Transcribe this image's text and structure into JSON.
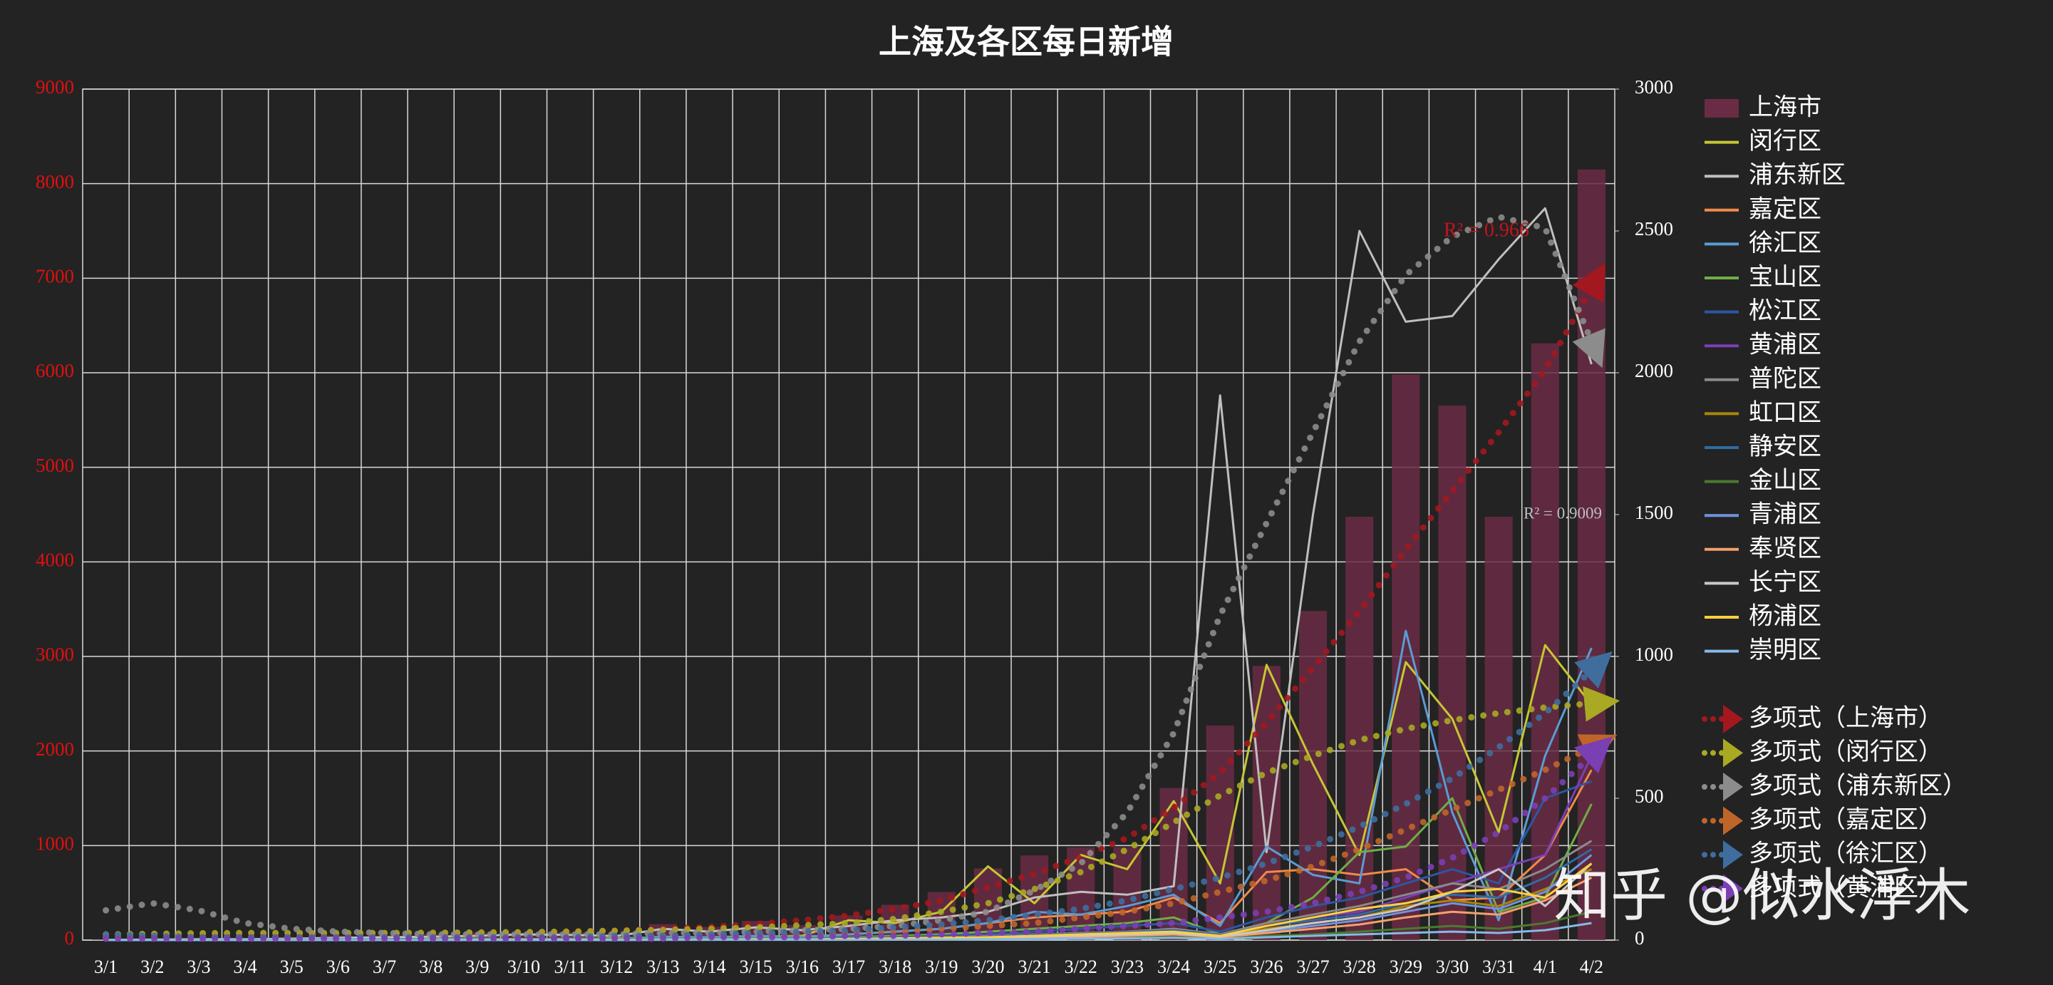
{
  "chart_data": {
    "type": "bar",
    "title": "上海及各区每日新增",
    "categories": [
      "3/1",
      "3/2",
      "3/3",
      "3/4",
      "3/5",
      "3/6",
      "3/7",
      "3/8",
      "3/9",
      "3/10",
      "3/11",
      "3/12",
      "3/13",
      "3/14",
      "3/15",
      "3/16",
      "3/17",
      "3/18",
      "3/19",
      "3/20",
      "3/21",
      "3/22",
      "3/23",
      "3/24",
      "3/25",
      "3/26",
      "3/27",
      "3/28",
      "3/29",
      "3/30",
      "3/31",
      "4/1",
      "4/2"
    ],
    "ylim": [
      0,
      9000
    ],
    "yticks": [
      0,
      1000,
      2000,
      3000,
      4000,
      5000,
      6000,
      7000,
      8000,
      9000
    ],
    "y2lim": [
      0,
      3000
    ],
    "y2ticks": [
      0,
      500,
      1000,
      1500,
      2000,
      2500,
      3000
    ],
    "grid": true,
    "series": [
      {
        "name": "上海市",
        "type": "bar",
        "color": "#6a2c44",
        "values": [
          3,
          5,
          16,
          19,
          31,
          48,
          48,
          65,
          80,
          75,
          83,
          65,
          169,
          139,
          202,
          158,
          260,
          374,
          509,
          758,
          896,
          981,
          983,
          1609,
          2269,
          2900,
          3480,
          4477,
          5982,
          5653,
          4477,
          6311,
          8150
        ]
      },
      {
        "name": "闵行区",
        "type": "line",
        "axis": "y2",
        "color": "#c6c634",
        "values": [
          0,
          0,
          0,
          1,
          2,
          3,
          2,
          4,
          5,
          3,
          4,
          6,
          10,
          8,
          12,
          15,
          70,
          60,
          100,
          260,
          130,
          300,
          250,
          490,
          200,
          970,
          620,
          300,
          980,
          780,
          380,
          1040,
          830
        ]
      },
      {
        "name": "浦东新区",
        "type": "line",
        "axis": "y2",
        "color": "#bfbfbf",
        "values": [
          1,
          2,
          3,
          3,
          5,
          8,
          10,
          12,
          15,
          20,
          18,
          14,
          40,
          30,
          45,
          35,
          50,
          70,
          80,
          100,
          150,
          170,
          160,
          190,
          1920,
          310,
          1500,
          2500,
          2180,
          2200,
          2400,
          2580,
          2030
        ]
      },
      {
        "name": "嘉定区",
        "type": "line",
        "axis": "y2",
        "color": "#f08a4b",
        "values": [
          0,
          0,
          0,
          0,
          1,
          2,
          1,
          2,
          3,
          2,
          3,
          4,
          10,
          8,
          12,
          10,
          20,
          30,
          40,
          60,
          80,
          90,
          100,
          150,
          60,
          240,
          250,
          230,
          250,
          140,
          150,
          300,
          600
        ]
      },
      {
        "name": "徐汇区",
        "type": "line",
        "axis": "y2",
        "color": "#5b9bd5",
        "values": [
          0,
          0,
          0,
          1,
          2,
          3,
          2,
          3,
          4,
          3,
          5,
          4,
          12,
          10,
          15,
          12,
          20,
          30,
          40,
          60,
          100,
          90,
          120,
          160,
          50,
          330,
          230,
          200,
          1090,
          450,
          70,
          650,
          1030
        ]
      },
      {
        "name": "宝山区",
        "type": "line",
        "axis": "y2",
        "color": "#70ad47",
        "values": [
          0,
          0,
          0,
          0,
          1,
          1,
          1,
          2,
          2,
          2,
          3,
          3,
          6,
          5,
          8,
          6,
          10,
          15,
          20,
          30,
          40,
          50,
          60,
          80,
          20,
          60,
          150,
          310,
          330,
          500,
          100,
          150,
          480
        ]
      },
      {
        "name": "松江区",
        "type": "line",
        "axis": "y2",
        "color": "#2f55a4",
        "values": [
          0,
          0,
          0,
          0,
          0,
          1,
          1,
          1,
          2,
          2,
          2,
          2,
          5,
          4,
          6,
          5,
          8,
          10,
          15,
          20,
          30,
          40,
          50,
          60,
          30,
          80,
          120,
          150,
          200,
          250,
          200,
          500,
          560
        ]
      },
      {
        "name": "黄浦区",
        "type": "line",
        "axis": "y2",
        "color": "#7b3fb5",
        "values": [
          0,
          0,
          0,
          0,
          0,
          0,
          1,
          1,
          1,
          1,
          2,
          2,
          4,
          3,
          5,
          4,
          6,
          8,
          10,
          15,
          20,
          25,
          30,
          40,
          20,
          50,
          80,
          100,
          150,
          200,
          250,
          300,
          650
        ]
      },
      {
        "name": "普陀区",
        "type": "line",
        "axis": "y2",
        "color": "#8a8a8a",
        "values": [
          0,
          0,
          0,
          0,
          0,
          1,
          1,
          1,
          1,
          2,
          2,
          2,
          4,
          3,
          5,
          4,
          6,
          8,
          10,
          14,
          20,
          25,
          30,
          40,
          20,
          60,
          90,
          120,
          160,
          200,
          180,
          250,
          350
        ]
      },
      {
        "name": "虹口区",
        "type": "line",
        "axis": "y2",
        "color": "#a8860a",
        "values": [
          0,
          0,
          0,
          0,
          0,
          0,
          0,
          1,
          1,
          1,
          1,
          1,
          3,
          2,
          4,
          3,
          5,
          6,
          8,
          10,
          15,
          20,
          25,
          30,
          15,
          40,
          60,
          80,
          120,
          140,
          120,
          180,
          250
        ]
      },
      {
        "name": "静安区",
        "type": "line",
        "axis": "y2",
        "color": "#2f6ca3",
        "values": [
          0,
          0,
          0,
          0,
          0,
          0,
          1,
          1,
          1,
          1,
          1,
          2,
          3,
          3,
          4,
          3,
          5,
          7,
          9,
          12,
          18,
          22,
          28,
          35,
          18,
          50,
          70,
          90,
          130,
          160,
          150,
          220,
          320
        ]
      },
      {
        "name": "金山区",
        "type": "line",
        "axis": "y2",
        "color": "#4a7a2e",
        "values": [
          0,
          0,
          0,
          0,
          0,
          0,
          0,
          0,
          0,
          0,
          1,
          1,
          1,
          1,
          2,
          1,
          2,
          3,
          4,
          5,
          6,
          8,
          10,
          12,
          6,
          15,
          20,
          30,
          40,
          50,
          40,
          60,
          100
        ]
      },
      {
        "name": "青浦区",
        "type": "line",
        "axis": "y2",
        "color": "#6f94dc",
        "values": [
          0,
          0,
          0,
          0,
          0,
          0,
          0,
          1,
          1,
          1,
          1,
          1,
          2,
          2,
          3,
          2,
          4,
          5,
          6,
          8,
          12,
          15,
          18,
          25,
          12,
          30,
          50,
          70,
          100,
          130,
          110,
          170,
          300
        ]
      },
      {
        "name": "奉贤区",
        "type": "line",
        "axis": "y2",
        "color": "#f4a06b",
        "values": [
          0,
          0,
          0,
          0,
          0,
          0,
          0,
          0,
          0,
          1,
          1,
          1,
          2,
          2,
          2,
          2,
          3,
          4,
          5,
          7,
          10,
          12,
          15,
          20,
          10,
          25,
          40,
          55,
          80,
          100,
          90,
          140,
          220
        ]
      },
      {
        "name": "长宁区",
        "type": "line",
        "axis": "y2",
        "color": "#c8c8c8",
        "values": [
          0,
          0,
          0,
          0,
          0,
          0,
          0,
          0,
          1,
          1,
          1,
          1,
          2,
          2,
          3,
          2,
          4,
          5,
          6,
          9,
          12,
          15,
          20,
          25,
          12,
          35,
          60,
          80,
          110,
          170,
          250,
          120,
          270
        ]
      },
      {
        "name": "杨浦区",
        "type": "line",
        "axis": "y2",
        "color": "#ffd040",
        "values": [
          0,
          0,
          0,
          0,
          0,
          0,
          0,
          0,
          1,
          1,
          1,
          1,
          2,
          2,
          3,
          2,
          4,
          6,
          8,
          10,
          15,
          20,
          25,
          30,
          15,
          50,
          80,
          110,
          130,
          170,
          180,
          150,
          270
        ]
      },
      {
        "name": "崇明区",
        "type": "line",
        "axis": "y2",
        "color": "#86b9e6",
        "values": [
          0,
          0,
          0,
          0,
          0,
          0,
          0,
          0,
          0,
          0,
          0,
          0,
          1,
          1,
          1,
          1,
          1,
          2,
          2,
          3,
          4,
          5,
          6,
          8,
          4,
          10,
          15,
          20,
          25,
          30,
          25,
          35,
          60
        ]
      },
      {
        "name": "多项式（上海市）",
        "type": "line",
        "style": "dotted",
        "color": "#a3171f",
        "values": [
          60,
          55,
          50,
          50,
          50,
          55,
          60,
          65,
          70,
          80,
          90,
          100,
          120,
          140,
          170,
          210,
          260,
          330,
          420,
          560,
          700,
          880,
          1080,
          1400,
          1770,
          2300,
          2880,
          3480,
          4130,
          4750,
          5370,
          6030,
          6900
        ]
      },
      {
        "name": "多项式（闵行区）",
        "type": "line",
        "style": "dotted",
        "axis": "y2",
        "color": "#a9a923",
        "values": [
          20,
          22,
          24,
          25,
          25,
          25,
          25,
          26,
          27,
          28,
          30,
          33,
          36,
          40,
          45,
          52,
          60,
          75,
          100,
          130,
          180,
          240,
          320,
          415,
          510,
          590,
          650,
          705,
          745,
          775,
          800,
          820,
          835
        ]
      },
      {
        "name": "多项式（浦东新区）",
        "type": "line",
        "style": "dotted",
        "axis": "y2",
        "color": "#8c8c8c",
        "values": [
          105,
          130,
          105,
          60,
          40,
          30,
          25,
          20,
          20,
          20,
          20,
          20,
          25,
          25,
          30,
          35,
          40,
          50,
          70,
          100,
          175,
          270,
          450,
          730,
          1145,
          1470,
          1790,
          2110,
          2345,
          2480,
          2550,
          2510,
          2110
        ]
      },
      {
        "name": "多项式（嘉定区）",
        "type": "line",
        "style": "dotted",
        "axis": "y2",
        "color": "#c0652a",
        "values": [
          10,
          10,
          10,
          10,
          10,
          10,
          10,
          10,
          10,
          10,
          10,
          10,
          15,
          15,
          20,
          20,
          25,
          30,
          40,
          50,
          60,
          80,
          100,
          130,
          170,
          210,
          260,
          320,
          390,
          460,
          530,
          600,
          680
        ]
      },
      {
        "name": "多项式（徐汇区）",
        "type": "line",
        "style": "dotted",
        "axis": "y2",
        "color": "#3f6e9e",
        "values": [
          20,
          15,
          10,
          10,
          10,
          10,
          10,
          10,
          10,
          10,
          10,
          15,
          15,
          20,
          25,
          30,
          35,
          45,
          55,
          70,
          90,
          110,
          140,
          180,
          220,
          270,
          330,
          400,
          480,
          570,
          680,
          800,
          950
        ]
      },
      {
        "name": "多项式（黄浦区）",
        "type": "line",
        "style": "dotted",
        "axis": "y2",
        "color": "#7a3fb3",
        "values": [
          5,
          5,
          5,
          5,
          5,
          5,
          5,
          5,
          5,
          5,
          5,
          5,
          5,
          10,
          10,
          10,
          15,
          15,
          20,
          25,
          30,
          40,
          50,
          60,
          80,
          100,
          130,
          170,
          220,
          290,
          380,
          500,
          650
        ]
      }
    ],
    "annotations": [
      "R² = 0.966",
      "R² = 0.9009"
    ],
    "watermark": "知乎 @似水浮木"
  }
}
